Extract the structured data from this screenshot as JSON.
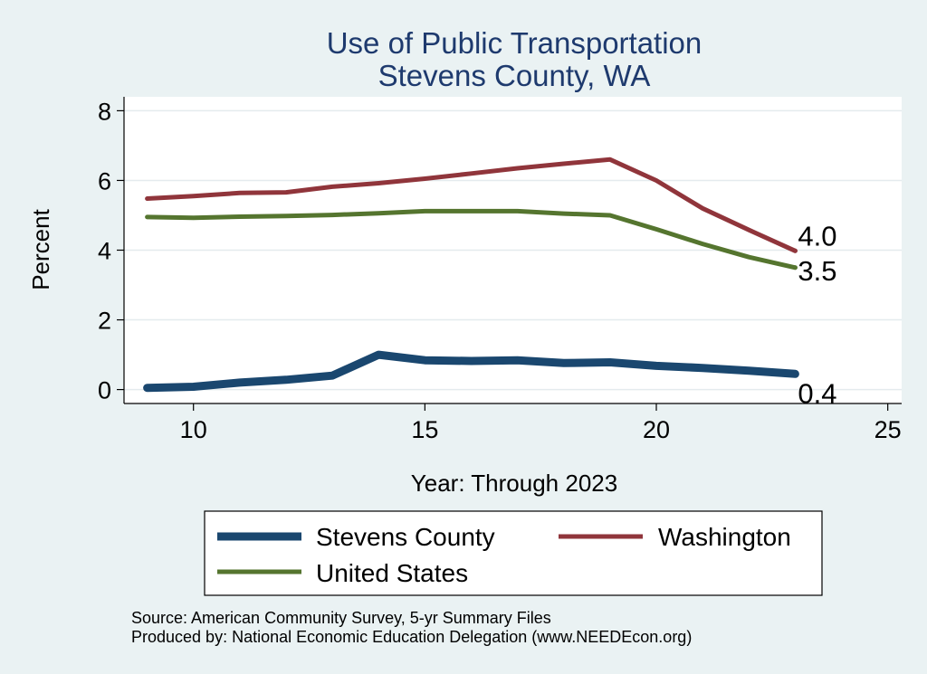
{
  "chart_data": {
    "type": "line",
    "title": [
      "Use of Public Transportation",
      "Stevens County, WA"
    ],
    "xlabel": "Year: Through 2023",
    "ylabel": "Percent",
    "xlim": [
      8.5,
      25.3
    ],
    "ylim": [
      -0.4,
      8.4
    ],
    "x_ticks": [
      10,
      15,
      20,
      25
    ],
    "y_ticks": [
      0,
      2,
      4,
      6,
      8
    ],
    "grid": "horizontal",
    "legend_position": "bottom",
    "series": [
      {
        "name": "Stevens County",
        "color": "#1A476F",
        "x": [
          9,
          10,
          11,
          12,
          13,
          14,
          15,
          16,
          17,
          18,
          19,
          20,
          21,
          22,
          23
        ],
        "y": [
          0.05,
          0.08,
          0.2,
          0.28,
          0.4,
          1.0,
          0.84,
          0.82,
          0.84,
          0.76,
          0.78,
          0.68,
          0.62,
          0.54,
          0.45
        ],
        "end_label": "0.4"
      },
      {
        "name": "Washington",
        "color": "#90353B",
        "x": [
          9,
          10,
          11,
          12,
          13,
          14,
          15,
          16,
          17,
          18,
          19,
          20,
          21,
          22,
          23
        ],
        "y": [
          5.48,
          5.55,
          5.64,
          5.66,
          5.82,
          5.92,
          6.05,
          6.2,
          6.35,
          6.48,
          6.6,
          6.0,
          5.2,
          4.58,
          3.98
        ],
        "end_label": "4.0"
      },
      {
        "name": "United States",
        "color": "#55752F",
        "x": [
          9,
          10,
          11,
          12,
          13,
          14,
          15,
          16,
          17,
          18,
          19,
          20,
          21,
          22,
          23
        ],
        "y": [
          4.95,
          4.93,
          4.96,
          4.98,
          5.01,
          5.06,
          5.12,
          5.12,
          5.12,
          5.05,
          5.0,
          4.6,
          4.18,
          3.8,
          3.5
        ],
        "end_label": "3.5"
      }
    ],
    "source_notes": [
      "Source: American Community Survey, 5-yr Summary Files",
      "Produced by: National Economic Education Delegation (www.NEEDEcon.org)"
    ]
  }
}
